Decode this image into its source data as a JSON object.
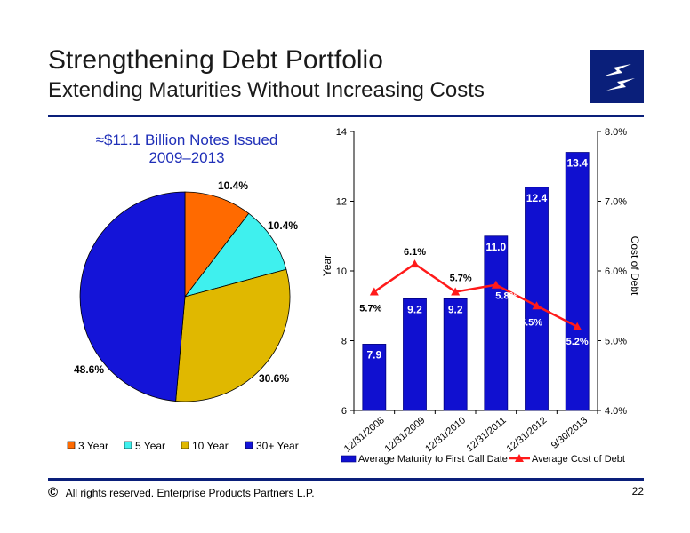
{
  "header": {
    "title": "Strengthening Debt Portfolio",
    "subtitle": "Extending Maturities Without Increasing Costs"
  },
  "colors": {
    "brand": "#0a1f7a",
    "bar": "#1010d0",
    "line": "#ff1a1a"
  },
  "logo_icon": "lightning-bolt-logo",
  "footer": {
    "copyright_symbol": "©",
    "text": "All rights reserved. Enterprise Products Partners L.P.",
    "page_number": "22"
  },
  "chart_data": [
    {
      "type": "pie",
      "title": "≈$11.1 Billion Notes Issued 2009–2013",
      "title_line1": "≈$11.1 Billion Notes Issued",
      "title_line2": "2009–2013",
      "slices": [
        {
          "name": "3 Year",
          "value": 10.4,
          "label": "10.4%",
          "color": "#ff6a00"
        },
        {
          "name": "5 Year",
          "value": 10.4,
          "label": "10.4%",
          "color": "#3ff0ee"
        },
        {
          "name": "10 Year",
          "value": 30.6,
          "label": "30.6%",
          "color": "#e0b800"
        },
        {
          "name": "30+ Year",
          "value": 48.6,
          "label": "48.6%",
          "color": "#1414d8"
        }
      ],
      "legend_position": "bottom"
    },
    {
      "type": "bar+line",
      "categories": [
        "12/31/2008",
        "12/31/2009",
        "12/31/2010",
        "12/31/2011",
        "12/31/2012",
        "9/30/2013"
      ],
      "series": [
        {
          "name": "Average Maturity to First Call Date",
          "type": "bar",
          "axis": "left",
          "values": [
            7.9,
            9.2,
            9.2,
            11.0,
            12.4,
            13.4
          ],
          "labels": [
            "7.9",
            "9.2",
            "9.2",
            "11.0",
            "12.4",
            "13.4"
          ]
        },
        {
          "name": "Average Cost of Debt",
          "type": "line",
          "axis": "right",
          "values": [
            5.7,
            6.1,
            5.7,
            5.8,
            5.5,
            5.2
          ],
          "labels": [
            "5.7%",
            "6.1%",
            "5.7%",
            "5.8%",
            "5.5%",
            "5.2%"
          ]
        }
      ],
      "y_left": {
        "label": "Year",
        "min": 6,
        "max": 14,
        "ticks": [
          "6",
          "8",
          "10",
          "12",
          "14"
        ]
      },
      "y_right": {
        "label": "Cost of Debt",
        "min": 4.0,
        "max": 8.0,
        "ticks": [
          "4.0%",
          "5.0%",
          "6.0%",
          "7.0%",
          "8.0%"
        ]
      },
      "grid": false,
      "legend_position": "bottom"
    }
  ]
}
